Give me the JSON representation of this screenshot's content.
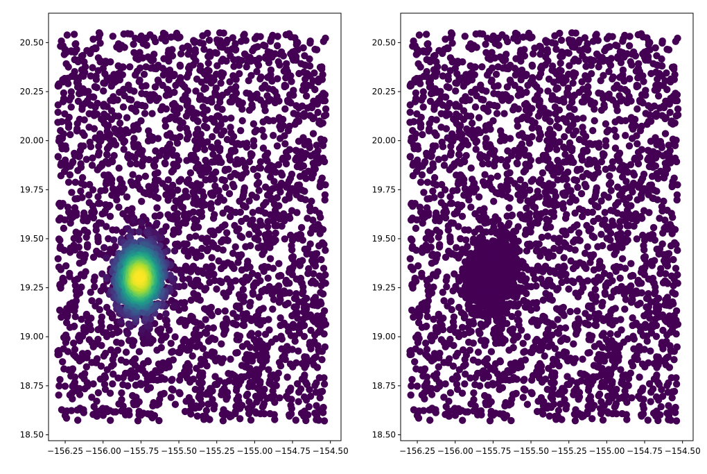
{
  "chart_data": [
    {
      "type": "scatter",
      "title": "",
      "xlabel": "",
      "ylabel": "",
      "xlim": [
        -156.36,
        -154.43
      ],
      "ylim": [
        18.47,
        20.65
      ],
      "x_ticks": [
        "−156.25",
        "−156.00",
        "−155.75",
        "−155.50",
        "−155.25",
        "−155.00",
        "−154.75",
        "−154.50"
      ],
      "x_tick_values": [
        -156.25,
        -156.0,
        -155.75,
        -155.5,
        -155.25,
        -155.0,
        -154.75,
        -154.5
      ],
      "y_ticks": [
        "18.50",
        "18.75",
        "19.00",
        "19.25",
        "19.50",
        "19.75",
        "20.00",
        "20.25",
        "20.50"
      ],
      "y_tick_values": [
        18.5,
        18.75,
        19.0,
        19.25,
        19.5,
        19.75,
        20.0,
        20.25,
        20.5
      ],
      "grid": false,
      "points": {
        "background": {
          "count": 2600,
          "x_range": [
            -156.3,
            -154.53
          ],
          "y_range": [
            18.57,
            20.55
          ],
          "value": 0
        },
        "cluster": {
          "count": 900,
          "center": [
            -155.76,
            19.3
          ],
          "spread": [
            0.085,
            0.095
          ],
          "peak_value": 1
        }
      },
      "colormap": "viridis",
      "color_encoding": "density"
    },
    {
      "type": "scatter",
      "title": "",
      "xlabel": "",
      "ylabel": "",
      "xlim": [
        -156.36,
        -154.43
      ],
      "ylim": [
        18.47,
        20.65
      ],
      "x_ticks": [
        "−156.25",
        "−156.00",
        "−155.75",
        "−155.50",
        "−155.25",
        "−155.00",
        "−154.75",
        "−154.50"
      ],
      "x_tick_values": [
        -156.25,
        -156.0,
        -155.75,
        -155.5,
        -155.25,
        -155.0,
        -154.75,
        -154.5
      ],
      "y_ticks": [
        "18.50",
        "18.75",
        "19.00",
        "19.25",
        "19.50",
        "19.75",
        "20.00",
        "20.25",
        "20.50"
      ],
      "y_tick_values": [
        18.5,
        18.75,
        19.0,
        19.25,
        19.5,
        19.75,
        20.0,
        20.25,
        20.5
      ],
      "grid": false,
      "points": {
        "background": {
          "count": 2600,
          "x_range": [
            -156.3,
            -154.53
          ],
          "y_range": [
            18.57,
            20.55
          ],
          "value": 0
        },
        "cluster": {
          "count": 900,
          "center": [
            -155.76,
            19.3
          ],
          "spread": [
            0.085,
            0.095
          ],
          "peak_value": 0
        }
      },
      "colormap": "viridis",
      "color_encoding": "uniform",
      "color": "#440154"
    }
  ]
}
